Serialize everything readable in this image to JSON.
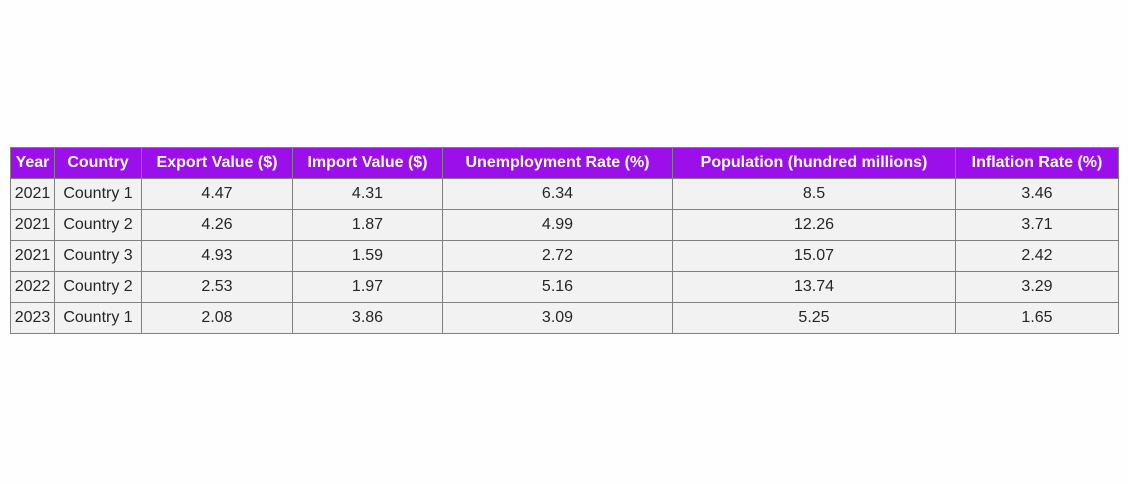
{
  "chart_data": {
    "type": "table",
    "header_color": "#9b0fea",
    "header_text_color": "#ffffff",
    "cell_color": "#f2f2f2",
    "border_color": "#808080",
    "columns": [
      "Year",
      "Country",
      "Export Value ($)",
      "Import Value ($)",
      "Unemployment Rate (%)",
      "Population (hundred millions)",
      "Inflation Rate (%)"
    ],
    "rows": [
      [
        "2021",
        "Country 1",
        "4.47",
        "4.31",
        "6.34",
        "8.5",
        "3.46"
      ],
      [
        "2021",
        "Country 2",
        "4.26",
        "1.87",
        "4.99",
        "12.26",
        "3.71"
      ],
      [
        "2021",
        "Country 3",
        "4.93",
        "1.59",
        "2.72",
        "15.07",
        "2.42"
      ],
      [
        "2022",
        "Country 2",
        "2.53",
        "1.97",
        "5.16",
        "13.74",
        "3.29"
      ],
      [
        "2023",
        "Country 1",
        "2.08",
        "3.86",
        "3.09",
        "5.25",
        "1.65"
      ]
    ]
  }
}
